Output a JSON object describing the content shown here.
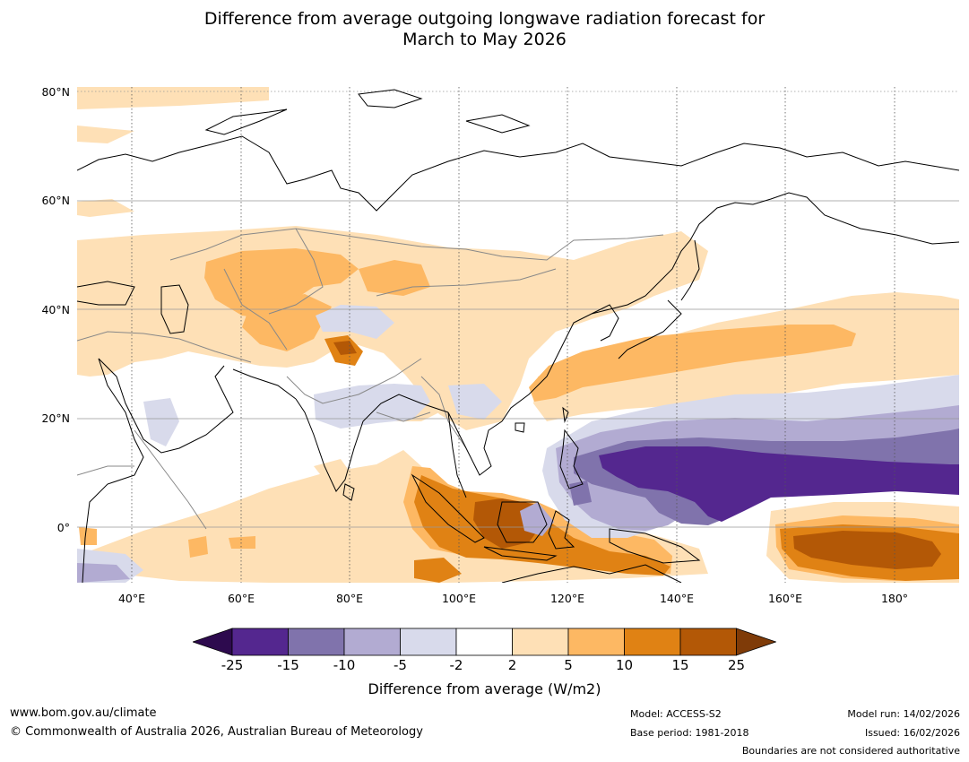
{
  "title": {
    "line1": "Difference from average outgoing longwave radiation forecast for",
    "line2": "March to May 2026"
  },
  "map": {
    "lat_labels": [
      "80°N",
      "60°N",
      "40°N",
      "20°N",
      "0°"
    ],
    "lon_labels": [
      "40°E",
      "60°E",
      "80°E",
      "100°E",
      "120°E",
      "140°E",
      "160°E",
      "180°"
    ]
  },
  "colorbar": {
    "label": "Difference from average (W/m2)",
    "ticks": [
      "-25",
      "-15",
      "-10",
      "-5",
      "-2",
      "2",
      "5",
      "10",
      "15",
      "25"
    ],
    "colors": [
      "#2d0a4e",
      "#54278f",
      "#8073ac",
      "#b2abd2",
      "#d8daeb",
      "#ffffff",
      "#fee0b6",
      "#fdb863",
      "#e08214",
      "#b35806",
      "#7f3b08"
    ]
  },
  "footer": {
    "website": "www.bom.gov.au/climate",
    "copyright": "© Commonwealth of Australia 2026, Australian Bureau of Meteorology",
    "model": "Model: ACCESS-S2",
    "base_period": "Base period: 1981-2018",
    "model_run": "Model run: 14/02/2026",
    "issued": "Issued: 16/02/2026",
    "disclaimer": "Boundaries are not considered authoritative"
  }
}
